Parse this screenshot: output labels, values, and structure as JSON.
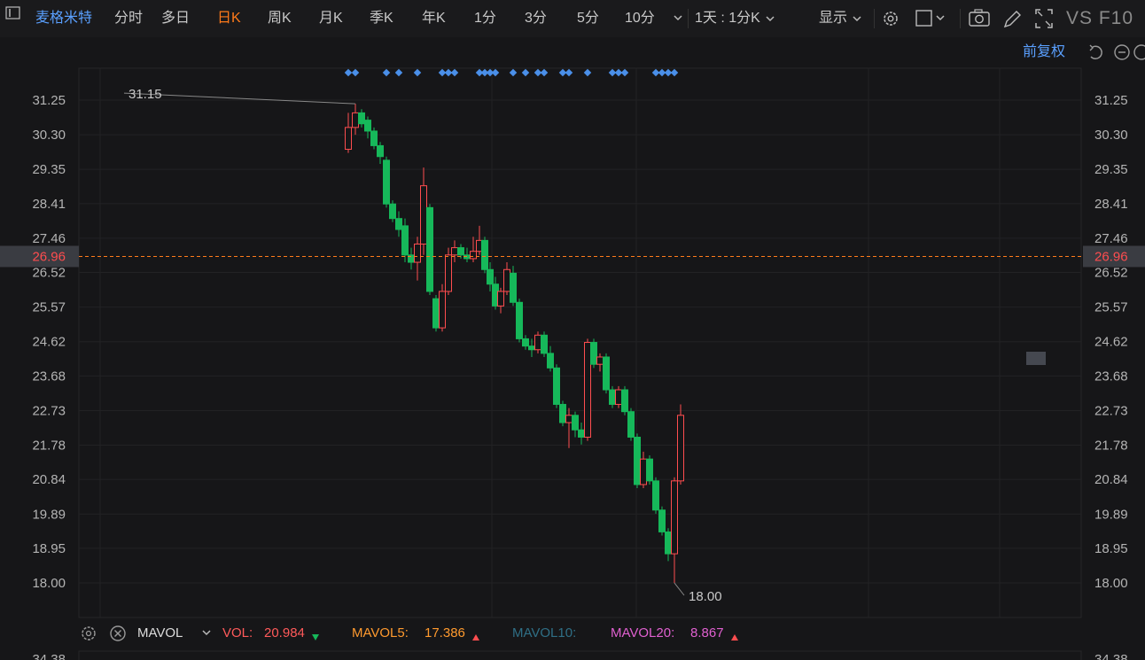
{
  "toolbar": {
    "title": "麦格米特",
    "tabs": [
      "分时",
      "多日",
      "日K",
      "周K",
      "月K",
      "季K",
      "年K",
      "1分",
      "3分",
      "5分",
      "10分"
    ],
    "active_tab": "日K",
    "range": "1天 : 1分K",
    "display": "显示",
    "brand": "VS F10"
  },
  "adjust": "前复权",
  "axis": {
    "ticks": [
      "31.25",
      "30.30",
      "29.35",
      "28.41",
      "27.46",
      "26.52",
      "25.57",
      "24.62",
      "23.68",
      "22.73",
      "21.78",
      "20.84",
      "19.89",
      "18.95",
      "18.00"
    ],
    "bottom_partial": "34.38"
  },
  "current_price": "26.96",
  "labels": {
    "high": "31.15",
    "low": "18.00"
  },
  "volume": {
    "indicator": "MAVOL",
    "vol_label": "VOL:",
    "vol_value": "20.984",
    "mavol5_label": "MAVOL5:",
    "mavol5_value": "17.386",
    "mavol10_label": "MAVOL10:",
    "mavol20_label": "MAVOL20:",
    "mavol20_value": "8.867"
  },
  "colors": {
    "up": "#ff4d4f",
    "down": "#16b85a",
    "accent": "#ff7a1a",
    "blue": "#5aa0ff",
    "marker": "#4a8fe8"
  },
  "chart_data": {
    "type": "candlestick",
    "ylim": [
      18.0,
      31.25
    ],
    "marker_candle_indices": [
      0,
      1,
      6,
      8,
      11,
      15,
      16,
      17,
      21,
      22,
      23,
      24,
      27,
      29,
      31,
      32,
      35,
      36,
      39,
      43,
      44,
      45,
      50,
      51,
      52,
      53
    ],
    "candles": [
      {
        "o": 29.9,
        "h": 30.9,
        "l": 29.8,
        "c": 30.5
      },
      {
        "o": 30.5,
        "h": 31.15,
        "l": 30.3,
        "c": 30.9
      },
      {
        "o": 30.9,
        "h": 31.0,
        "l": 30.5,
        "c": 30.6
      },
      {
        "o": 30.7,
        "h": 30.8,
        "l": 30.2,
        "c": 30.4
      },
      {
        "o": 30.4,
        "h": 30.5,
        "l": 29.9,
        "c": 30.0
      },
      {
        "o": 30.0,
        "h": 30.1,
        "l": 29.5,
        "c": 29.7
      },
      {
        "o": 29.6,
        "h": 29.7,
        "l": 28.3,
        "c": 28.4
      },
      {
        "o": 28.4,
        "h": 28.5,
        "l": 27.9,
        "c": 28.0
      },
      {
        "o": 28.0,
        "h": 28.2,
        "l": 27.5,
        "c": 27.7
      },
      {
        "o": 27.8,
        "h": 28.0,
        "l": 26.8,
        "c": 27.0
      },
      {
        "o": 27.0,
        "h": 27.2,
        "l": 26.6,
        "c": 26.8
      },
      {
        "o": 26.8,
        "h": 27.5,
        "l": 26.3,
        "c": 27.3
      },
      {
        "o": 27.3,
        "h": 29.4,
        "l": 27.0,
        "c": 28.9
      },
      {
        "o": 28.3,
        "h": 28.4,
        "l": 25.9,
        "c": 26.0
      },
      {
        "o": 25.8,
        "h": 25.9,
        "l": 24.9,
        "c": 25.0
      },
      {
        "o": 25.0,
        "h": 26.2,
        "l": 24.9,
        "c": 26.0
      },
      {
        "o": 26.0,
        "h": 27.2,
        "l": 25.9,
        "c": 27.0
      },
      {
        "o": 27.0,
        "h": 27.4,
        "l": 26.8,
        "c": 27.2
      },
      {
        "o": 27.2,
        "h": 27.3,
        "l": 26.9,
        "c": 27.0
      },
      {
        "o": 27.0,
        "h": 27.2,
        "l": 26.8,
        "c": 26.9
      },
      {
        "o": 26.9,
        "h": 27.5,
        "l": 26.8,
        "c": 27.1
      },
      {
        "o": 27.1,
        "h": 27.8,
        "l": 27.0,
        "c": 27.4
      },
      {
        "o": 27.4,
        "h": 27.5,
        "l": 26.5,
        "c": 26.6
      },
      {
        "o": 26.6,
        "h": 26.8,
        "l": 26.0,
        "c": 26.2
      },
      {
        "o": 26.2,
        "h": 26.4,
        "l": 25.5,
        "c": 25.6
      },
      {
        "o": 25.6,
        "h": 26.1,
        "l": 25.4,
        "c": 26.0
      },
      {
        "o": 26.0,
        "h": 26.8,
        "l": 25.9,
        "c": 26.6
      },
      {
        "o": 26.5,
        "h": 26.7,
        "l": 25.6,
        "c": 25.7
      },
      {
        "o": 25.7,
        "h": 25.8,
        "l": 24.6,
        "c": 24.7
      },
      {
        "o": 24.7,
        "h": 24.8,
        "l": 24.4,
        "c": 24.5
      },
      {
        "o": 24.5,
        "h": 24.7,
        "l": 24.2,
        "c": 24.4
      },
      {
        "o": 24.4,
        "h": 24.9,
        "l": 24.3,
        "c": 24.8
      },
      {
        "o": 24.8,
        "h": 24.9,
        "l": 24.2,
        "c": 24.3
      },
      {
        "o": 24.3,
        "h": 24.5,
        "l": 23.8,
        "c": 23.9
      },
      {
        "o": 23.9,
        "h": 24.0,
        "l": 22.8,
        "c": 22.9
      },
      {
        "o": 22.9,
        "h": 23.0,
        "l": 22.3,
        "c": 22.4
      },
      {
        "o": 22.4,
        "h": 22.8,
        "l": 21.7,
        "c": 22.6
      },
      {
        "o": 22.6,
        "h": 22.7,
        "l": 22.0,
        "c": 22.2
      },
      {
        "o": 22.2,
        "h": 22.4,
        "l": 21.8,
        "c": 22.0
      },
      {
        "o": 22.0,
        "h": 24.7,
        "l": 21.9,
        "c": 24.6
      },
      {
        "o": 24.6,
        "h": 24.7,
        "l": 23.9,
        "c": 24.0
      },
      {
        "o": 24.0,
        "h": 24.3,
        "l": 23.8,
        "c": 24.2
      },
      {
        "o": 24.2,
        "h": 24.3,
        "l": 23.2,
        "c": 23.3
      },
      {
        "o": 23.3,
        "h": 23.4,
        "l": 22.8,
        "c": 22.9
      },
      {
        "o": 22.9,
        "h": 23.4,
        "l": 22.8,
        "c": 23.3
      },
      {
        "o": 23.3,
        "h": 23.4,
        "l": 22.6,
        "c": 22.7
      },
      {
        "o": 22.7,
        "h": 22.8,
        "l": 21.9,
        "c": 22.0
      },
      {
        "o": 22.0,
        "h": 22.1,
        "l": 20.6,
        "c": 20.7
      },
      {
        "o": 20.7,
        "h": 21.6,
        "l": 20.6,
        "c": 21.4
      },
      {
        "o": 21.4,
        "h": 21.5,
        "l": 20.7,
        "c": 20.8
      },
      {
        "o": 20.8,
        "h": 20.9,
        "l": 19.9,
        "c": 20.0
      },
      {
        "o": 20.0,
        "h": 20.1,
        "l": 19.3,
        "c": 19.4
      },
      {
        "o": 19.4,
        "h": 19.5,
        "l": 18.6,
        "c": 18.8
      },
      {
        "o": 18.8,
        "h": 20.9,
        "l": 18.0,
        "c": 20.8
      },
      {
        "o": 20.8,
        "h": 22.9,
        "l": 20.7,
        "c": 22.6
      }
    ]
  }
}
